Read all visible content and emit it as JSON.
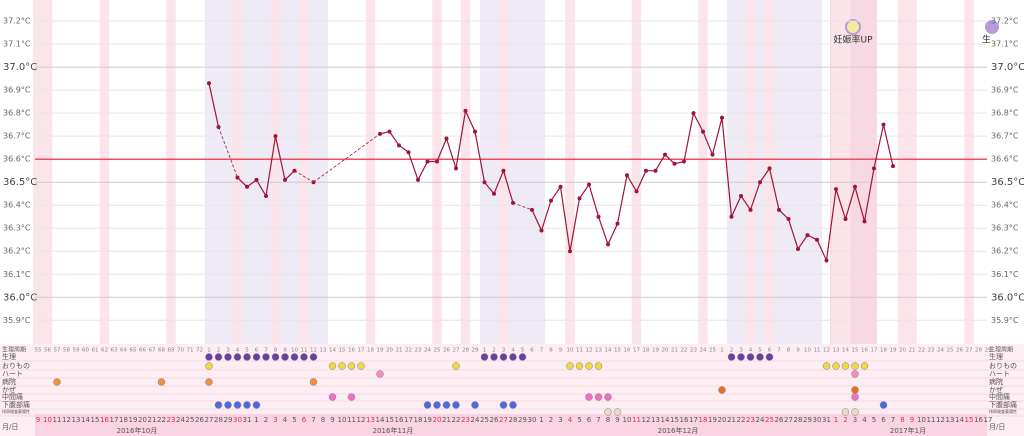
{
  "chart_data": {
    "type": "line",
    "x": [
      9,
      10,
      11,
      12,
      13,
      14,
      15,
      16,
      17,
      18,
      19,
      20,
      21,
      22,
      23,
      24,
      25,
      26,
      27,
      28,
      29,
      30,
      31,
      1,
      2,
      3,
      4,
      5,
      6,
      7,
      8,
      9,
      10,
      11,
      12,
      13,
      14,
      15,
      16,
      17,
      18,
      19,
      20,
      21,
      22,
      23,
      24,
      25,
      26,
      27,
      28,
      29,
      30,
      1,
      2,
      3,
      4,
      5,
      6,
      7,
      8,
      9,
      10,
      11,
      12,
      13,
      14,
      15,
      16,
      17,
      18,
      19,
      20,
      21,
      22,
      23,
      24,
      25,
      26,
      27,
      28,
      29,
      30,
      31,
      1,
      2,
      3,
      4,
      5,
      6,
      7,
      8,
      9,
      10,
      11,
      12,
      13,
      14,
      15,
      16,
      17
    ],
    "red_dates": [
      0,
      1,
      7,
      14,
      21,
      25,
      28,
      35,
      42,
      45,
      49,
      56,
      63,
      70,
      75,
      77,
      84,
      85,
      91,
      92,
      98
    ],
    "month_labels": [
      "2016年10月",
      "2016年11月",
      "2016年12月",
      "2017年1月"
    ],
    "cycle_days": [
      55,
      56,
      57,
      58,
      59,
      60,
      61,
      62,
      63,
      64,
      65,
      66,
      67,
      68,
      69,
      70,
      71,
      72,
      1,
      2,
      3,
      4,
      5,
      6,
      7,
      8,
      9,
      10,
      11,
      12,
      13,
      14,
      15,
      16,
      17,
      18,
      19,
      20,
      21,
      22,
      23,
      24,
      25,
      26,
      27,
      28,
      29,
      1,
      2,
      3,
      4,
      5,
      6,
      7,
      8,
      9,
      10,
      11,
      12,
      13,
      14,
      15,
      16,
      17,
      18,
      19,
      20,
      21,
      22,
      23,
      24,
      25,
      1,
      2,
      3,
      4,
      5,
      6,
      7,
      8,
      9,
      10,
      11,
      12,
      13,
      14,
      15,
      16,
      17,
      18,
      19,
      20,
      21,
      22,
      23,
      24,
      25,
      26,
      27,
      28,
      29
    ],
    "values": [
      null,
      null,
      null,
      null,
      null,
      null,
      null,
      null,
      null,
      null,
      null,
      null,
      null,
      null,
      null,
      null,
      null,
      null,
      36.93,
      36.74,
      null,
      36.52,
      36.48,
      36.51,
      36.44,
      36.7,
      36.51,
      36.55,
      null,
      36.5,
      null,
      null,
      null,
      null,
      null,
      null,
      36.71,
      36.72,
      36.66,
      36.63,
      36.51,
      36.59,
      36.59,
      36.69,
      36.56,
      36.81,
      36.72,
      36.5,
      36.45,
      36.55,
      36.41,
      null,
      36.38,
      36.29,
      36.42,
      36.48,
      36.2,
      36.43,
      36.49,
      36.35,
      36.23,
      36.32,
      36.53,
      36.46,
      36.55,
      36.55,
      36.62,
      36.58,
      36.59,
      36.8,
      36.72,
      36.62,
      36.78,
      36.35,
      36.44,
      36.38,
      36.5,
      36.56,
      36.38,
      36.34,
      36.21,
      36.27,
      36.25,
      36.16,
      36.47,
      36.34,
      36.48,
      36.33,
      36.56,
      36.75,
      36.57,
      null,
      null,
      null,
      null,
      null,
      null,
      null,
      null,
      null,
      null
    ],
    "color": "#a0143a",
    "cover_line": 36.6,
    "cover_color": "#e8505f",
    "ylim": [
      35.81,
      37.27
    ],
    "yticks": [
      {
        "value": 35.9,
        "label": "35.9°C"
      },
      {
        "value": 36.0,
        "label": "36.0°C"
      },
      {
        "value": 36.1,
        "label": "36.1°C"
      },
      {
        "value": 36.2,
        "label": "36.2°C"
      },
      {
        "value": 36.3,
        "label": "36.3°C"
      },
      {
        "value": 36.4,
        "label": "36.4°C"
      },
      {
        "value": 36.5,
        "label": "36.5°C"
      },
      {
        "value": 36.6,
        "label": "36.6°C"
      },
      {
        "value": 36.7,
        "label": "36.7°C"
      },
      {
        "value": 36.8,
        "label": "36.8°C"
      },
      {
        "value": 36.9,
        "label": "36.9°C"
      },
      {
        "value": 37.0,
        "label": "37.0°C"
      },
      {
        "value": 37.1,
        "label": "37.1°C"
      },
      {
        "value": 37.2,
        "label": "37.2°C"
      }
    ],
    "annotation": "妊娠率UP",
    "edge_text": "生",
    "cycle_label": "生理周期",
    "date_label": "月/日",
    "records": [
      {
        "label": "生理",
        "color": "#6a3fa0",
        "days": [
          18,
          19,
          20,
          21,
          22,
          23,
          24,
          25,
          26,
          27,
          28,
          29,
          47,
          48,
          49,
          50,
          51,
          73,
          74,
          75,
          76,
          77
        ]
      },
      {
        "label": "おりもの",
        "color": "#f0d840",
        "days": [
          18,
          31,
          32,
          33,
          34,
          44,
          56,
          57,
          58,
          59,
          83,
          84,
          85,
          86,
          87
        ]
      },
      {
        "label": "ハート",
        "color": "#f08cc0",
        "days": [
          36,
          86
        ]
      },
      {
        "label": "病院",
        "color": "#f0903a",
        "days": [
          2,
          13,
          18,
          29
        ]
      },
      {
        "label": "かぜ",
        "color": "#e87020",
        "days": [
          72,
          86
        ]
      },
      {
        "label": "中間痛",
        "color": "#f070c0",
        "days": [
          31,
          33,
          58,
          59,
          60,
          86
        ]
      },
      {
        "label": "下腹部痛",
        "color": "#4a6ae0",
        "days": [
          19,
          20,
          21,
          22,
          23,
          41,
          42,
          43,
          44,
          46,
          49,
          50,
          89
        ]
      },
      {
        "label": "排卵検査薬陽性",
        "color": "#e8dcc0",
        "days": [
          60,
          61,
          85,
          86
        ]
      }
    ]
  }
}
